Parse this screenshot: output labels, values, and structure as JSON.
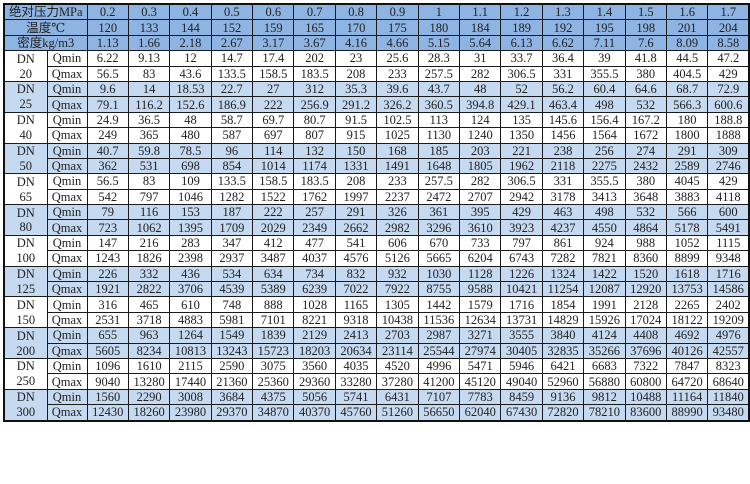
{
  "header": {
    "pressure_label": "绝对压力MPa",
    "temperature_label": "温度℃",
    "density_label": "密度kg/m3",
    "pressure": [
      "0.2",
      "0.3",
      "0.4",
      "0.5",
      "0.6",
      "0.7",
      "0.8",
      "0.9",
      "1",
      "1.1",
      "1.2",
      "1.3",
      "1.4",
      "1.5",
      "1.6",
      "1.7"
    ],
    "temperature": [
      "120",
      "133",
      "144",
      "152",
      "159",
      "165",
      "170",
      "175",
      "180",
      "184",
      "189",
      "192",
      "195",
      "198",
      "201",
      "204"
    ],
    "density": [
      "1.13",
      "1.66",
      "2.18",
      "2.67",
      "3.17",
      "3.67",
      "4.16",
      "4.66",
      "5.15",
      "5.64",
      "6.13",
      "6.62",
      "7.11",
      "7.6",
      "8.09",
      "8.58"
    ]
  },
  "colors": {
    "header_bg": "#8db4e2",
    "stripe_bg": "#c5d9f1",
    "plain_bg": "#ffffff"
  },
  "groups": [
    {
      "dn": "DN",
      "size": "20",
      "qmin_label": "Qmin",
      "qmax_label": "Qmax",
      "qmin": [
        "6.22",
        "9.13",
        "12",
        "14.7",
        "17.4",
        "202",
        "23",
        "25.6",
        "28.3",
        "31",
        "33.7",
        "36.4",
        "39",
        "41.8",
        "44.5",
        "47.2"
      ],
      "qmax": [
        "56.5",
        "83",
        "43.6",
        "133.5",
        "158.5",
        "183.5",
        "208",
        "233",
        "257.5",
        "282",
        "306.5",
        "331",
        "355.5",
        "380",
        "404.5",
        "429"
      ]
    },
    {
      "dn": "DN",
      "size": "25",
      "qmin_label": "Qmin",
      "qmax_label": "Qmax",
      "qmin": [
        "9.6",
        "14",
        "18.53",
        "22.7",
        "27",
        "312",
        "35.3",
        "39.6",
        "43.7",
        "48",
        "52",
        "56.2",
        "60.4",
        "64.6",
        "68.7",
        "72.9"
      ],
      "qmax": [
        "79.1",
        "116.2",
        "152.6",
        "186.9",
        "222",
        "256.9",
        "291.2",
        "326.2",
        "360.5",
        "394.8",
        "429.1",
        "463.4",
        "498",
        "532",
        "566.3",
        "600.6"
      ]
    },
    {
      "dn": "DN",
      "size": "40",
      "qmin_label": "Qmin",
      "qmax_label": "Qmax",
      "qmin": [
        "24.9",
        "36.5",
        "48",
        "58.7",
        "69.7",
        "80.7",
        "91.5",
        "102.5",
        "113",
        "124",
        "135",
        "145.6",
        "156.4",
        "167.2",
        "180",
        "188.8"
      ],
      "qmax": [
        "249",
        "365",
        "480",
        "587",
        "697",
        "807",
        "915",
        "1025",
        "1130",
        "1240",
        "1350",
        "1456",
        "1564",
        "1672",
        "1800",
        "1888"
      ]
    },
    {
      "dn": "DN",
      "size": "50",
      "qmin_label": "Qmin",
      "qmax_label": "Qmax",
      "qmin": [
        "40.7",
        "59.8",
        "78.5",
        "96",
        "114",
        "132",
        "150",
        "168",
        "185",
        "203",
        "221",
        "238",
        "256",
        "274",
        "291",
        "309"
      ],
      "qmax": [
        "362",
        "531",
        "698",
        "854",
        "1014",
        "1174",
        "1331",
        "1491",
        "1648",
        "1805",
        "1962",
        "2118",
        "2275",
        "2432",
        "2589",
        "2746"
      ]
    },
    {
      "dn": "DN",
      "size": "65",
      "qmin_label": "Qmin",
      "qmax_label": "Qmax",
      "qmin": [
        "56.5",
        "83",
        "109",
        "133.5",
        "158.5",
        "183.5",
        "208",
        "233",
        "257.5",
        "282",
        "306.5",
        "331",
        "355.5",
        "380",
        "4045",
        "429"
      ],
      "qmax": [
        "542",
        "797",
        "1046",
        "1282",
        "1522",
        "1762",
        "1997",
        "2237",
        "2472",
        "2707",
        "2942",
        "3178",
        "3413",
        "3648",
        "3883",
        "4118"
      ]
    },
    {
      "dn": "DN",
      "size": "80",
      "qmin_label": "Qmin",
      "qmax_label": "Qmax",
      "qmin": [
        "79",
        "116",
        "153",
        "187",
        "222",
        "257",
        "291",
        "326",
        "361",
        "395",
        "429",
        "463",
        "498",
        "532",
        "566",
        "600"
      ],
      "qmax": [
        "723",
        "1062",
        "1395",
        "1709",
        "2029",
        "2349",
        "2662",
        "2982",
        "3296",
        "3610",
        "3923",
        "4237",
        "4550",
        "4864",
        "5178",
        "5491"
      ]
    },
    {
      "dn": "DN",
      "size": "100",
      "qmin_label": "Qmin",
      "qmax_label": "Qmax",
      "qmin": [
        "147",
        "216",
        "283",
        "347",
        "412",
        "477",
        "541",
        "606",
        "670",
        "733",
        "797",
        "861",
        "924",
        "988",
        "1052",
        "1115"
      ],
      "qmax": [
        "1243",
        "1826",
        "2398",
        "2937",
        "3487",
        "4037",
        "4576",
        "5126",
        "5665",
        "6204",
        "6743",
        "7282",
        "7821",
        "8360",
        "8899",
        "9348"
      ]
    },
    {
      "dn": "DN",
      "size": "125",
      "qmin_label": "Qmin",
      "qmax_label": "Qmax",
      "qmin": [
        "226",
        "332",
        "436",
        "534",
        "634",
        "734",
        "832",
        "932",
        "1030",
        "1128",
        "1226",
        "1324",
        "1422",
        "1520",
        "1618",
        "1716"
      ],
      "qmax": [
        "1921",
        "2822",
        "3706",
        "4539",
        "5389",
        "6239",
        "7022",
        "7922",
        "8755",
        "9588",
        "10421",
        "11254",
        "12087",
        "12920",
        "13753",
        "14586"
      ]
    },
    {
      "dn": "DN",
      "size": "150",
      "qmin_label": "Qmin",
      "qmax_label": "Qmax",
      "qmin": [
        "316",
        "465",
        "610",
        "748",
        "888",
        "1028",
        "1165",
        "1305",
        "1442",
        "1579",
        "1716",
        "1854",
        "1991",
        "2128",
        "2265",
        "2402"
      ],
      "qmax": [
        "2531",
        "3718",
        "4883",
        "5981",
        "7101",
        "8221",
        "9318",
        "10438",
        "11536",
        "12634",
        "13731",
        "14829",
        "15926",
        "17024",
        "18122",
        "19209"
      ]
    },
    {
      "dn": "DN",
      "size": "200",
      "qmin_label": "Qmin",
      "qmax_label": "Qmax",
      "qmin": [
        "655",
        "963",
        "1264",
        "1549",
        "1839",
        "2129",
        "2413",
        "2703",
        "2987",
        "3271",
        "3555",
        "3840",
        "4124",
        "4408",
        "4692",
        "4976"
      ],
      "qmax": [
        "5605",
        "8234",
        "10813",
        "13243",
        "15723",
        "18203",
        "20634",
        "23114",
        "25544",
        "27974",
        "30405",
        "32835",
        "35266",
        "37696",
        "40126",
        "42557"
      ]
    },
    {
      "dn": "DN",
      "size": "250",
      "qmin_label": "Qmin",
      "qmax_label": "Qmax",
      "qmin": [
        "1096",
        "1610",
        "2115",
        "2590",
        "3075",
        "3560",
        "4035",
        "4520",
        "4996",
        "5471",
        "5946",
        "6421",
        "6683",
        "7322",
        "7847",
        "8323"
      ],
      "qmax": [
        "9040",
        "13280",
        "17440",
        "21360",
        "25360",
        "29360",
        "33280",
        "37280",
        "41200",
        "45120",
        "49040",
        "52960",
        "56880",
        "60800",
        "64720",
        "68640"
      ]
    },
    {
      "dn": "DN",
      "size": "300",
      "qmin_label": "Qmin",
      "qmax_label": "Qmax",
      "qmin": [
        "1560",
        "2290",
        "3008",
        "3684",
        "4375",
        "5056",
        "5741",
        "6431",
        "7107",
        "7783",
        "8459",
        "9136",
        "9812",
        "10488",
        "11164",
        "11840"
      ],
      "qmax": [
        "12430",
        "18260",
        "23980",
        "29370",
        "34870",
        "40370",
        "45760",
        "51260",
        "56650",
        "62040",
        "67430",
        "72820",
        "78210",
        "83600",
        "88990",
        "93480"
      ]
    }
  ]
}
